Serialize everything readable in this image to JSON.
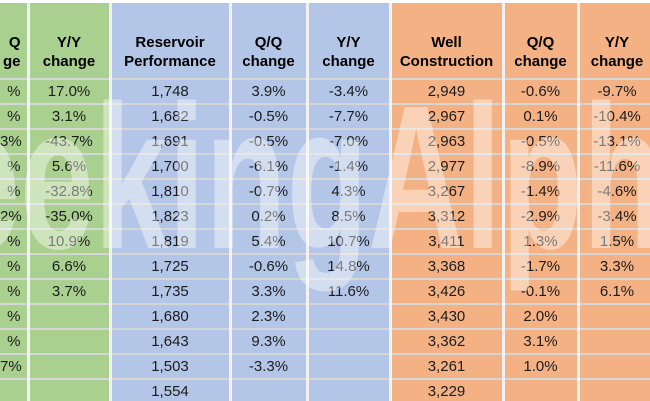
{
  "watermark": {
    "text": "SeekingAlpha"
  },
  "colors": {
    "green": "#a9d08e",
    "blue": "#b4c6e7",
    "orange": "#f4b183",
    "gridline_horizontal": "#d6d6d6",
    "gridline_vertical": "#f2f2f2"
  },
  "table": {
    "headers": [
      {
        "id": "qq-change-cut",
        "group": "green",
        "cut": true,
        "lines": [
          "Q",
          "ge"
        ]
      },
      {
        "id": "yy-change-green",
        "group": "green",
        "cut": false,
        "lines": [
          "Y/Y",
          "change"
        ]
      },
      {
        "id": "reservoir-performance",
        "group": "blue",
        "cut": false,
        "lines": [
          "Reservoir",
          "Performance"
        ]
      },
      {
        "id": "qq-change-blue",
        "group": "blue",
        "cut": false,
        "lines": [
          "Q/Q",
          "change"
        ]
      },
      {
        "id": "yy-change-blue",
        "group": "blue",
        "cut": false,
        "lines": [
          "Y/Y",
          "change"
        ]
      },
      {
        "id": "well-construction",
        "group": "orange",
        "cut": false,
        "lines": [
          "Well",
          "Construction"
        ]
      },
      {
        "id": "qq-change-orange",
        "group": "orange",
        "cut": false,
        "lines": [
          "Q/Q",
          "change"
        ]
      },
      {
        "id": "yy-change-orange",
        "group": "orange",
        "cut": false,
        "lines": [
          "Y/Y",
          "change"
        ]
      }
    ],
    "rows": [
      [
        "%",
        "17.0%",
        "1,748",
        "3.9%",
        "-3.4%",
        "2,949",
        "-0.6%",
        "-9.7%"
      ],
      [
        "%",
        "3.1%",
        "1,682",
        "-0.5%",
        "-7.7%",
        "2,967",
        "0.1%",
        "-10.4%"
      ],
      [
        "3%",
        "-43.7%",
        "1,691",
        "-0.5%",
        "-7.0%",
        "2,963",
        "-0.5%",
        "-13.1%"
      ],
      [
        "%",
        "5.6%",
        "1,700",
        "-6.1%",
        "-1.4%",
        "2,977",
        "-8.9%",
        "-11.6%"
      ],
      [
        "%",
        "-32.8%",
        "1,810",
        "-0.7%",
        "4.3%",
        "3,267",
        "-1.4%",
        "-4.6%"
      ],
      [
        "2%",
        "-35.0%",
        "1,823",
        "0.2%",
        "8.5%",
        "3,312",
        "-2.9%",
        "-3.4%"
      ],
      [
        "%",
        "10.9%",
        "1,819",
        "5.4%",
        "10.7%",
        "3,411",
        "1.3%",
        "1.5%"
      ],
      [
        "%",
        "6.6%",
        "1,725",
        "-0.6%",
        "14.8%",
        "3,368",
        "-1.7%",
        "3.3%"
      ],
      [
        "%",
        "3.7%",
        "1,735",
        "3.3%",
        "11.6%",
        "3,426",
        "-0.1%",
        "6.1%"
      ],
      [
        "%",
        "",
        "1,680",
        "2.3%",
        "",
        "3,430",
        "2.0%",
        ""
      ],
      [
        "%",
        "",
        "1,643",
        "9.3%",
        "",
        "3,362",
        "3.1%",
        ""
      ],
      [
        "7%",
        "",
        "1,503",
        "-3.3%",
        "",
        "3,261",
        "1.0%",
        ""
      ],
      [
        "",
        "",
        "1,554",
        "",
        "",
        "3,229",
        "",
        ""
      ]
    ]
  }
}
